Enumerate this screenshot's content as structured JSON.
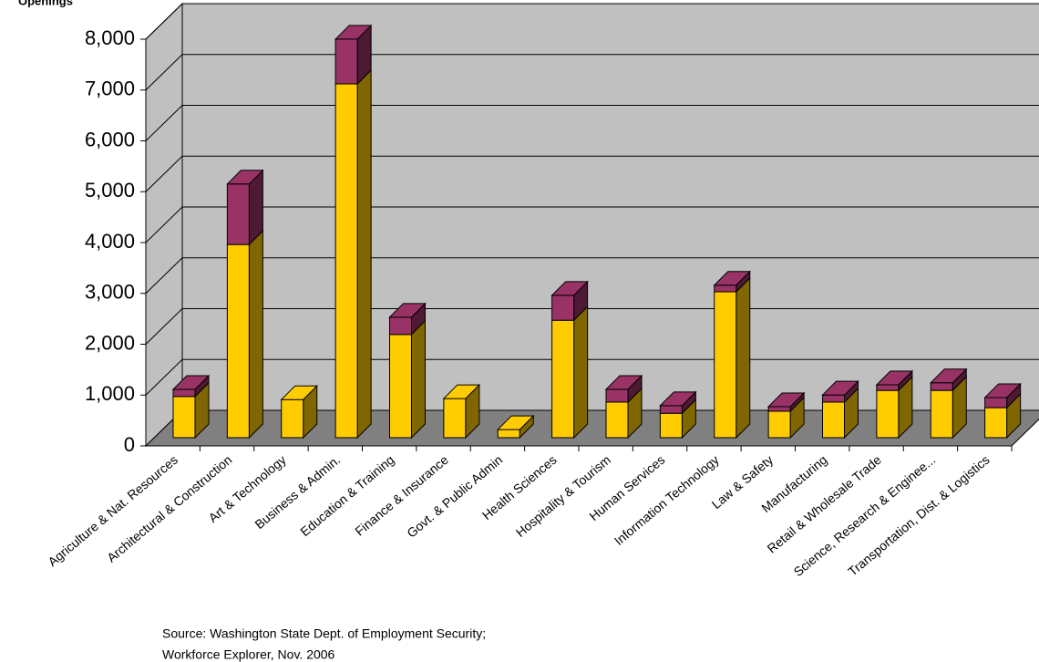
{
  "chart_data": {
    "type": "bar3d-stacked",
    "y_label": "Openings",
    "categories": [
      "Agriculture & Nat. Resources",
      "Architectural & Construction",
      "Art & Technology",
      "Business & Admin.",
      "Education & Training",
      "Finance & Insurance",
      "Govt. & Public Admin",
      "Health Sciences",
      "Hospitality & Tourism",
      "Human Services",
      "Information Technology",
      "Law & Safety",
      "Manufacturing",
      "Retail & Wholesale Trade",
      "Science, Research & Enginee...",
      "Transportation, Dist. & Logistics"
    ],
    "series": [
      {
        "color": "#FFCC00",
        "side_color": "#806600",
        "values": [
          810,
          3800,
          750,
          6960,
          2030,
          770,
          160,
          2310,
          700,
          480,
          2870,
          520,
          700,
          930,
          930,
          590
        ]
      },
      {
        "color": "#993366",
        "side_color": "#4D1933",
        "values": [
          140,
          1190,
          0,
          880,
          340,
          0,
          0,
          490,
          250,
          150,
          130,
          90,
          140,
          110,
          150,
          200
        ]
      }
    ],
    "ylim": [
      0,
      8000
    ],
    "yticks": [
      0,
      {
        "value": 1000,
        "label": "1,000"
      },
      {
        "value": 2000,
        "label": "2,000"
      },
      {
        "value": 3000,
        "label": "3,000"
      },
      {
        "value": 4000,
        "label": "4,000"
      },
      {
        "value": 5000,
        "label": "5,000"
      },
      {
        "value": 6000,
        "label": "6,000"
      },
      {
        "value": 7000,
        "label": "7,000"
      },
      {
        "value": 8000,
        "label": "8,000"
      }
    ],
    "grid": true,
    "source": [
      "Source:  Washington State Dept. of Employment Security;",
      "Workforce Explorer, Nov. 2006"
    ]
  }
}
